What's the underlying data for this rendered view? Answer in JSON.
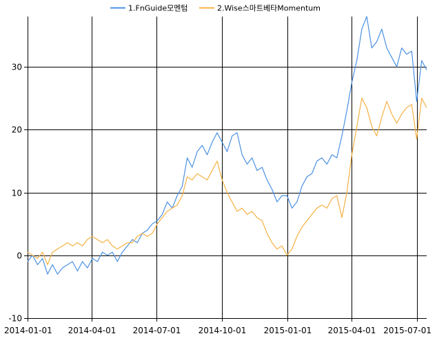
{
  "chart_data": {
    "type": "line",
    "title": "",
    "xlabel": "",
    "ylabel": "",
    "ylim": [
      -10,
      38
    ],
    "xlim": [
      "2014-01-01",
      "2015-07-15"
    ],
    "grid": true,
    "legend_position": "top-center",
    "x_ticks": [
      "2014-01-01",
      "2014-04-01",
      "2014-07-01",
      "2014-10-01",
      "2015-01-01",
      "2015-04-01",
      "2015-07-01"
    ],
    "y_ticks": [
      -10,
      0,
      10,
      20,
      30
    ],
    "colors": {
      "series1": "#4a90e2",
      "series2": "#f5b041",
      "grid": "#000000"
    },
    "series": [
      {
        "name": "1.FnGuide모멘텀",
        "color": "#4a90e2",
        "points": [
          [
            "2014-01-01",
            -1.0
          ],
          [
            "2014-01-08",
            0.0
          ],
          [
            "2014-01-15",
            -1.5
          ],
          [
            "2014-01-22",
            -0.5
          ],
          [
            "2014-01-29",
            -3.0
          ],
          [
            "2014-02-05",
            -1.5
          ],
          [
            "2014-02-12",
            -3.0
          ],
          [
            "2014-02-19",
            -2.0
          ],
          [
            "2014-02-26",
            -1.5
          ],
          [
            "2014-03-05",
            -1.0
          ],
          [
            "2014-03-12",
            -2.5
          ],
          [
            "2014-03-19",
            -1.0
          ],
          [
            "2014-03-26",
            -2.0
          ],
          [
            "2014-04-02",
            -0.5
          ],
          [
            "2014-04-09",
            -1.0
          ],
          [
            "2014-04-16",
            0.5
          ],
          [
            "2014-04-23",
            0.0
          ],
          [
            "2014-04-30",
            0.5
          ],
          [
            "2014-05-07",
            -1.0
          ],
          [
            "2014-05-14",
            0.5
          ],
          [
            "2014-05-21",
            1.5
          ],
          [
            "2014-05-28",
            2.5
          ],
          [
            "2014-06-04",
            2.0
          ],
          [
            "2014-06-11",
            3.5
          ],
          [
            "2014-06-18",
            4.0
          ],
          [
            "2014-06-25",
            5.0
          ],
          [
            "2014-07-02",
            5.5
          ],
          [
            "2014-07-09",
            6.5
          ],
          [
            "2014-07-16",
            8.5
          ],
          [
            "2014-07-23",
            7.5
          ],
          [
            "2014-07-30",
            9.5
          ],
          [
            "2014-08-06",
            11.0
          ],
          [
            "2014-08-13",
            15.5
          ],
          [
            "2014-08-20",
            14.0
          ],
          [
            "2014-08-27",
            16.5
          ],
          [
            "2014-09-03",
            17.5
          ],
          [
            "2014-09-10",
            16.0
          ],
          [
            "2014-09-17",
            18.0
          ],
          [
            "2014-09-24",
            19.5
          ],
          [
            "2014-10-01",
            18.0
          ],
          [
            "2014-10-08",
            16.5
          ],
          [
            "2014-10-15",
            19.0
          ],
          [
            "2014-10-22",
            19.5
          ],
          [
            "2014-10-29",
            16.0
          ],
          [
            "2014-11-05",
            14.5
          ],
          [
            "2014-11-12",
            15.5
          ],
          [
            "2014-11-19",
            13.5
          ],
          [
            "2014-11-26",
            14.0
          ],
          [
            "2014-12-03",
            12.0
          ],
          [
            "2014-12-10",
            10.5
          ],
          [
            "2014-12-17",
            8.5
          ],
          [
            "2014-12-24",
            9.5
          ],
          [
            "2014-12-31",
            9.5
          ],
          [
            "2015-01-07",
            7.5
          ],
          [
            "2015-01-14",
            8.5
          ],
          [
            "2015-01-21",
            11.0
          ],
          [
            "2015-01-28",
            12.5
          ],
          [
            "2015-02-04",
            13.0
          ],
          [
            "2015-02-11",
            15.0
          ],
          [
            "2015-02-18",
            15.5
          ],
          [
            "2015-02-25",
            14.5
          ],
          [
            "2015-03-04",
            16.0
          ],
          [
            "2015-03-11",
            15.5
          ],
          [
            "2015-03-18",
            19.0
          ],
          [
            "2015-03-25",
            23.0
          ],
          [
            "2015-04-01",
            27.5
          ],
          [
            "2015-04-08",
            31.0
          ],
          [
            "2015-04-15",
            36.0
          ],
          [
            "2015-04-22",
            38.0
          ],
          [
            "2015-04-29",
            33.0
          ],
          [
            "2015-05-06",
            34.0
          ],
          [
            "2015-05-13",
            36.0
          ],
          [
            "2015-05-20",
            33.0
          ],
          [
            "2015-05-27",
            31.5
          ],
          [
            "2015-06-03",
            30.0
          ],
          [
            "2015-06-10",
            33.0
          ],
          [
            "2015-06-17",
            32.0
          ],
          [
            "2015-06-24",
            32.5
          ],
          [
            "2015-07-01",
            24.5
          ],
          [
            "2015-07-08",
            31.0
          ],
          [
            "2015-07-15",
            29.5
          ]
        ]
      },
      {
        "name": "2.Wise스마트베타Momentum",
        "color": "#f5b041",
        "points": [
          [
            "2014-01-01",
            0.5
          ],
          [
            "2014-01-08",
            0.0
          ],
          [
            "2014-01-15",
            -0.5
          ],
          [
            "2014-01-22",
            0.5
          ],
          [
            "2014-01-29",
            -1.5
          ],
          [
            "2014-02-05",
            0.5
          ],
          [
            "2014-02-12",
            1.0
          ],
          [
            "2014-02-19",
            1.5
          ],
          [
            "2014-02-26",
            2.0
          ],
          [
            "2014-03-05",
            1.5
          ],
          [
            "2014-03-12",
            2.0
          ],
          [
            "2014-03-19",
            1.5
          ],
          [
            "2014-03-26",
            2.5
          ],
          [
            "2014-04-02",
            3.0
          ],
          [
            "2014-04-09",
            2.5
          ],
          [
            "2014-04-16",
            2.0
          ],
          [
            "2014-04-23",
            2.5
          ],
          [
            "2014-04-30",
            1.5
          ],
          [
            "2014-05-07",
            1.0
          ],
          [
            "2014-05-14",
            1.5
          ],
          [
            "2014-05-21",
            2.0
          ],
          [
            "2014-05-28",
            2.0
          ],
          [
            "2014-06-04",
            3.0
          ],
          [
            "2014-06-11",
            3.5
          ],
          [
            "2014-06-18",
            3.0
          ],
          [
            "2014-06-25",
            3.5
          ],
          [
            "2014-07-02",
            5.0
          ],
          [
            "2014-07-09",
            6.0
          ],
          [
            "2014-07-16",
            7.0
          ],
          [
            "2014-07-23",
            7.5
          ],
          [
            "2014-07-30",
            8.0
          ],
          [
            "2014-08-06",
            9.5
          ],
          [
            "2014-08-13",
            12.5
          ],
          [
            "2014-08-20",
            12.0
          ],
          [
            "2014-08-27",
            13.0
          ],
          [
            "2014-09-03",
            12.5
          ],
          [
            "2014-09-10",
            12.0
          ],
          [
            "2014-09-17",
            13.5
          ],
          [
            "2014-09-24",
            15.0
          ],
          [
            "2014-10-01",
            12.0
          ],
          [
            "2014-10-08",
            10.0
          ],
          [
            "2014-10-15",
            8.5
          ],
          [
            "2014-10-22",
            7.0
          ],
          [
            "2014-10-29",
            7.5
          ],
          [
            "2014-11-05",
            6.5
          ],
          [
            "2014-11-12",
            7.0
          ],
          [
            "2014-11-19",
            6.0
          ],
          [
            "2014-11-26",
            5.5
          ],
          [
            "2014-12-03",
            3.5
          ],
          [
            "2014-12-10",
            2.0
          ],
          [
            "2014-12-17",
            1.0
          ],
          [
            "2014-12-24",
            1.5
          ],
          [
            "2014-12-31",
            0.0
          ],
          [
            "2015-01-07",
            1.0
          ],
          [
            "2015-01-14",
            3.0
          ],
          [
            "2015-01-21",
            4.5
          ],
          [
            "2015-01-28",
            5.5
          ],
          [
            "2015-02-04",
            6.5
          ],
          [
            "2015-02-11",
            7.5
          ],
          [
            "2015-02-18",
            8.0
          ],
          [
            "2015-02-25",
            7.5
          ],
          [
            "2015-03-04",
            9.0
          ],
          [
            "2015-03-11",
            9.5
          ],
          [
            "2015-03-18",
            6.0
          ],
          [
            "2015-03-25",
            10.0
          ],
          [
            "2015-04-01",
            16.0
          ],
          [
            "2015-04-08",
            20.5
          ],
          [
            "2015-04-15",
            25.0
          ],
          [
            "2015-04-22",
            23.5
          ],
          [
            "2015-04-29",
            20.5
          ],
          [
            "2015-05-06",
            19.0
          ],
          [
            "2015-05-13",
            22.0
          ],
          [
            "2015-05-20",
            24.5
          ],
          [
            "2015-05-27",
            22.5
          ],
          [
            "2015-06-03",
            21.0
          ],
          [
            "2015-06-10",
            22.5
          ],
          [
            "2015-06-17",
            23.5
          ],
          [
            "2015-06-24",
            24.0
          ],
          [
            "2015-07-01",
            18.5
          ],
          [
            "2015-07-08",
            25.0
          ],
          [
            "2015-07-15",
            23.5
          ]
        ]
      }
    ]
  }
}
